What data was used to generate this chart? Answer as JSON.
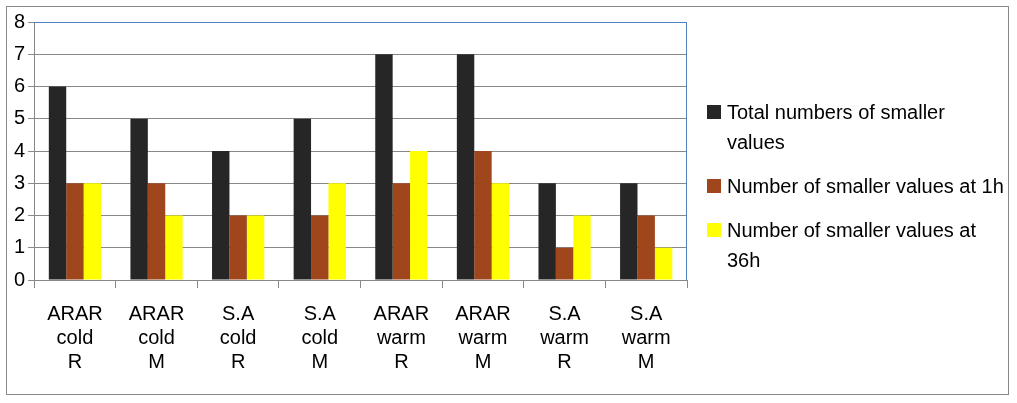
{
  "chart_data": {
    "type": "bar",
    "categories": [
      "ARAR cold R",
      "ARAR cold M",
      "S.A cold R",
      "S.A cold M",
      "ARAR warm R",
      "ARAR warm M",
      "S.A warm R",
      "S.A warm M"
    ],
    "series": [
      {
        "name": "Total numbers of smaller values",
        "color": "#262626",
        "values": [
          6,
          5,
          4,
          5,
          7,
          7,
          3,
          3
        ]
      },
      {
        "name": "Number of smaller values at 1h",
        "color": "#a0461c",
        "values": [
          3,
          3,
          2,
          2,
          3,
          4,
          1,
          2
        ]
      },
      {
        "name": "Number of smaller values at 36h",
        "color": "#ffff00",
        "values": [
          3,
          2,
          2,
          3,
          4,
          3,
          2,
          1
        ]
      }
    ],
    "ylim": [
      0,
      8
    ],
    "yticks": [
      0,
      1,
      2,
      3,
      4,
      5,
      6,
      7,
      8
    ],
    "grid": "y",
    "legend": "right"
  }
}
